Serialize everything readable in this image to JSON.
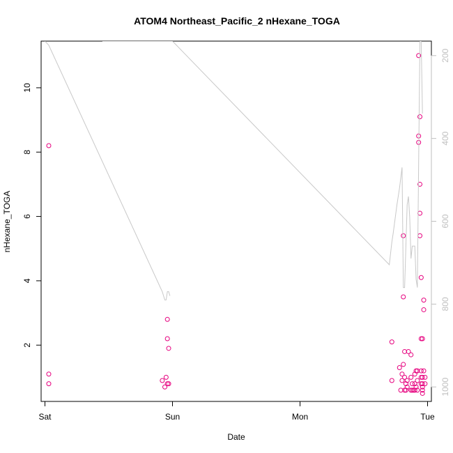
{
  "chart_data": {
    "type": "scatter",
    "title": "ATOM4 Northeast_Pacific_2 nHexane_TOGA",
    "xlabel": "Date",
    "ylabel": "nHexane_TOGA",
    "x_ticks": [
      "Sat",
      "Sun",
      "Mon",
      "Tue"
    ],
    "xlim": [
      -0.03,
      3.03
    ],
    "ylim": [
      0.25,
      11.45
    ],
    "y_ticks": [
      2,
      4,
      6,
      8,
      10
    ],
    "y2_ticks": [
      200,
      400,
      600,
      800,
      1000
    ],
    "y2lim": [
      1035,
      165
    ],
    "grid": false,
    "series": [
      {
        "kind": "points",
        "color": "#e6007e",
        "x": [
          0.03,
          0.03,
          0.03,
          0.92,
          0.94,
          0.95,
          0.96,
          0.96,
          0.96,
          0.97,
          0.97,
          2.72,
          2.72,
          2.78,
          2.79,
          2.8,
          2.8,
          2.81,
          2.81,
          2.81,
          2.82,
          2.82,
          2.82,
          2.83,
          2.83,
          2.84,
          2.84,
          2.85,
          2.87,
          2.87,
          2.87,
          2.88,
          2.88,
          2.89,
          2.9,
          2.9,
          2.9,
          2.91,
          2.91,
          2.92,
          2.92,
          2.92,
          2.93,
          2.93,
          2.93,
          2.94,
          2.94,
          2.94,
          2.94,
          2.95,
          2.95,
          2.95,
          2.95,
          2.95,
          2.96,
          2.96,
          2.96,
          2.96,
          2.96,
          2.96,
          2.97,
          2.97,
          2.97,
          2.98,
          2.98
        ],
        "y": [
          8.2,
          1.1,
          0.8,
          0.9,
          0.7,
          1.0,
          0.8,
          2.8,
          2.2,
          1.9,
          0.8,
          2.1,
          0.9,
          1.3,
          0.6,
          1.1,
          0.9,
          5.4,
          3.5,
          1.4,
          1.8,
          1.0,
          0.6,
          0.8,
          0.6,
          0.9,
          0.7,
          1.8,
          1.7,
          1.0,
          0.6,
          0.8,
          0.6,
          0.6,
          1.1,
          0.8,
          0.6,
          0.7,
          1.2,
          0.6,
          0.9,
          1.2,
          11.0,
          8.5,
          8.3,
          7.0,
          6.1,
          9.1,
          5.4,
          4.1,
          2.2,
          1.0,
          0.8,
          1.2,
          0.5,
          2.2,
          0.6,
          0.8,
          1.0,
          0.7,
          3.4,
          3.1,
          1.2,
          0.8,
          1.0
        ]
      },
      {
        "kind": "line",
        "axis": "right",
        "color": "#c8c8c8",
        "x": [
          0.0,
          0.03,
          0.92,
          0.94,
          0.95,
          0.96,
          0.97,
          0.98,
          0.45,
          1.0,
          2.7,
          2.72,
          2.73,
          2.76,
          2.78,
          2.8,
          2.81,
          2.82,
          2.84,
          2.85,
          2.86,
          2.87,
          2.88,
          2.9,
          2.91,
          2.92,
          2.93,
          2.94,
          2.95,
          2.96
        ],
        "y_right": [
          165,
          175,
          770,
          790,
          790,
          770,
          770,
          780,
          165,
          165,
          705,
          650,
          630,
          560,
          520,
          470,
          760,
          760,
          560,
          540,
          590,
          690,
          660,
          660,
          740,
          760,
          460,
          165,
          165,
          340
        ]
      }
    ]
  }
}
